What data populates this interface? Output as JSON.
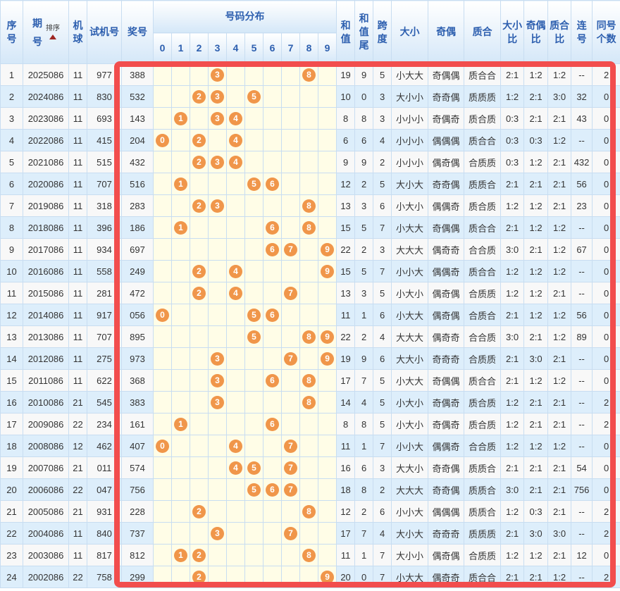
{
  "colors": {
    "highlight_red": "#f24d4d",
    "ball_orange": "#f0964a",
    "header_blue": "#2d5faf",
    "row_alt_blue": "#ddeefb",
    "ball_area_yellow": "#fffde7",
    "grid_line": "#c8ddf1",
    "sort_arrow_red": "#9e2723"
  },
  "table": {
    "headers": {
      "seq": "序号",
      "period": "期号",
      "sort_label": "排序",
      "machine": "机球",
      "test_number": "试机号",
      "win_number": "奖号",
      "distribution": "号码分布",
      "digits": [
        "0",
        "1",
        "2",
        "3",
        "4",
        "5",
        "6",
        "7",
        "8",
        "9"
      ],
      "sum": "和值",
      "sum_tail": "和值尾",
      "span": "跨度",
      "size": "大小",
      "parity": "奇偶",
      "prime": "质合",
      "size_ratio": "大小比",
      "parity_ratio": "奇偶比",
      "prime_ratio": "质合比",
      "consecutive": "连号",
      "same_count": "同号个数"
    },
    "rows": [
      {
        "seq": "1",
        "period": "2025086",
        "machine": "11",
        "test_number": "977",
        "win_number": "388",
        "distribution": [
          3,
          8
        ],
        "sum": "19",
        "sum_tail": "9",
        "span": "5",
        "size": "小大大",
        "parity": "奇偶偶",
        "prime": "质合合",
        "size_ratio": "2:1",
        "parity_ratio": "1:2",
        "prime_ratio": "1:2",
        "consecutive": "--",
        "same_count": "2"
      },
      {
        "seq": "2",
        "period": "2024086",
        "machine": "11",
        "test_number": "830",
        "win_number": "532",
        "distribution": [
          2,
          3,
          5
        ],
        "sum": "10",
        "sum_tail": "0",
        "span": "3",
        "size": "大小小",
        "parity": "奇奇偶",
        "prime": "质质质",
        "size_ratio": "1:2",
        "parity_ratio": "2:1",
        "prime_ratio": "3:0",
        "consecutive": "32",
        "same_count": "0"
      },
      {
        "seq": "3",
        "period": "2023086",
        "machine": "11",
        "test_number": "693",
        "win_number": "143",
        "distribution": [
          1,
          3,
          4
        ],
        "sum": "8",
        "sum_tail": "8",
        "span": "3",
        "size": "小小小",
        "parity": "奇偶奇",
        "prime": "质合质",
        "size_ratio": "0:3",
        "parity_ratio": "2:1",
        "prime_ratio": "2:1",
        "consecutive": "43",
        "same_count": "0"
      },
      {
        "seq": "4",
        "period": "2022086",
        "machine": "11",
        "test_number": "415",
        "win_number": "204",
        "distribution": [
          0,
          2,
          4
        ],
        "sum": "6",
        "sum_tail": "6",
        "span": "4",
        "size": "小小小",
        "parity": "偶偶偶",
        "prime": "质合合",
        "size_ratio": "0:3",
        "parity_ratio": "0:3",
        "prime_ratio": "1:2",
        "consecutive": "--",
        "same_count": "0"
      },
      {
        "seq": "5",
        "period": "2021086",
        "machine": "11",
        "test_number": "515",
        "win_number": "432",
        "distribution": [
          2,
          3,
          4
        ],
        "sum": "9",
        "sum_tail": "9",
        "span": "2",
        "size": "小小小",
        "parity": "偶奇偶",
        "prime": "合质质",
        "size_ratio": "0:3",
        "parity_ratio": "1:2",
        "prime_ratio": "2:1",
        "consecutive": "432",
        "same_count": "0"
      },
      {
        "seq": "6",
        "period": "2020086",
        "machine": "11",
        "test_number": "707",
        "win_number": "516",
        "distribution": [
          1,
          5,
          6
        ],
        "sum": "12",
        "sum_tail": "2",
        "span": "5",
        "size": "大小大",
        "parity": "奇奇偶",
        "prime": "质质合",
        "size_ratio": "2:1",
        "parity_ratio": "2:1",
        "prime_ratio": "2:1",
        "consecutive": "56",
        "same_count": "0"
      },
      {
        "seq": "7",
        "period": "2019086",
        "machine": "11",
        "test_number": "318",
        "win_number": "283",
        "distribution": [
          2,
          3,
          8
        ],
        "sum": "13",
        "sum_tail": "3",
        "span": "6",
        "size": "小大小",
        "parity": "偶偶奇",
        "prime": "质合质",
        "size_ratio": "1:2",
        "parity_ratio": "1:2",
        "prime_ratio": "2:1",
        "consecutive": "23",
        "same_count": "0"
      },
      {
        "seq": "8",
        "period": "2018086",
        "machine": "11",
        "test_number": "396",
        "win_number": "186",
        "distribution": [
          1,
          6,
          8
        ],
        "sum": "15",
        "sum_tail": "5",
        "span": "7",
        "size": "小大大",
        "parity": "奇偶偶",
        "prime": "质合合",
        "size_ratio": "2:1",
        "parity_ratio": "1:2",
        "prime_ratio": "1:2",
        "consecutive": "--",
        "same_count": "0"
      },
      {
        "seq": "9",
        "period": "2017086",
        "machine": "11",
        "test_number": "934",
        "win_number": "697",
        "distribution": [
          6,
          7,
          9
        ],
        "sum": "22",
        "sum_tail": "2",
        "span": "3",
        "size": "大大大",
        "parity": "偶奇奇",
        "prime": "合合质",
        "size_ratio": "3:0",
        "parity_ratio": "2:1",
        "prime_ratio": "1:2",
        "consecutive": "67",
        "same_count": "0"
      },
      {
        "seq": "10",
        "period": "2016086",
        "machine": "11",
        "test_number": "558",
        "win_number": "249",
        "distribution": [
          2,
          4,
          9
        ],
        "sum": "15",
        "sum_tail": "5",
        "span": "7",
        "size": "小小大",
        "parity": "偶偶奇",
        "prime": "质合合",
        "size_ratio": "1:2",
        "parity_ratio": "1:2",
        "prime_ratio": "1:2",
        "consecutive": "--",
        "same_count": "0"
      },
      {
        "seq": "11",
        "period": "2015086",
        "machine": "11",
        "test_number": "281",
        "win_number": "472",
        "distribution": [
          2,
          4,
          7
        ],
        "sum": "13",
        "sum_tail": "3",
        "span": "5",
        "size": "小大小",
        "parity": "偶奇偶",
        "prime": "合质质",
        "size_ratio": "1:2",
        "parity_ratio": "1:2",
        "prime_ratio": "2:1",
        "consecutive": "--",
        "same_count": "0"
      },
      {
        "seq": "12",
        "period": "2014086",
        "machine": "11",
        "test_number": "917",
        "win_number": "056",
        "distribution": [
          0,
          5,
          6
        ],
        "sum": "11",
        "sum_tail": "1",
        "span": "6",
        "size": "小大大",
        "parity": "偶奇偶",
        "prime": "合质合",
        "size_ratio": "2:1",
        "parity_ratio": "1:2",
        "prime_ratio": "1:2",
        "consecutive": "56",
        "same_count": "0"
      },
      {
        "seq": "13",
        "period": "2013086",
        "machine": "11",
        "test_number": "707",
        "win_number": "895",
        "distribution": [
          5,
          8,
          9
        ],
        "sum": "22",
        "sum_tail": "2",
        "span": "4",
        "size": "大大大",
        "parity": "偶奇奇",
        "prime": "合合质",
        "size_ratio": "3:0",
        "parity_ratio": "2:1",
        "prime_ratio": "1:2",
        "consecutive": "89",
        "same_count": "0"
      },
      {
        "seq": "14",
        "period": "2012086",
        "machine": "11",
        "test_number": "275",
        "win_number": "973",
        "distribution": [
          3,
          7,
          9
        ],
        "sum": "19",
        "sum_tail": "9",
        "span": "6",
        "size": "大大小",
        "parity": "奇奇奇",
        "prime": "合质质",
        "size_ratio": "2:1",
        "parity_ratio": "3:0",
        "prime_ratio": "2:1",
        "consecutive": "--",
        "same_count": "0"
      },
      {
        "seq": "15",
        "period": "2011086",
        "machine": "11",
        "test_number": "622",
        "win_number": "368",
        "distribution": [
          3,
          6,
          8
        ],
        "sum": "17",
        "sum_tail": "7",
        "span": "5",
        "size": "小大大",
        "parity": "奇偶偶",
        "prime": "质合合",
        "size_ratio": "2:1",
        "parity_ratio": "1:2",
        "prime_ratio": "1:2",
        "consecutive": "--",
        "same_count": "0"
      },
      {
        "seq": "16",
        "period": "2010086",
        "machine": "21",
        "test_number": "545",
        "win_number": "383",
        "distribution": [
          3,
          8
        ],
        "sum": "14",
        "sum_tail": "4",
        "span": "5",
        "size": "小大小",
        "parity": "奇偶奇",
        "prime": "质合质",
        "size_ratio": "1:2",
        "parity_ratio": "2:1",
        "prime_ratio": "2:1",
        "consecutive": "--",
        "same_count": "2"
      },
      {
        "seq": "17",
        "period": "2009086",
        "machine": "22",
        "test_number": "234",
        "win_number": "161",
        "distribution": [
          1,
          6
        ],
        "sum": "8",
        "sum_tail": "8",
        "span": "5",
        "size": "小大小",
        "parity": "奇偶奇",
        "prime": "质合质",
        "size_ratio": "1:2",
        "parity_ratio": "2:1",
        "prime_ratio": "2:1",
        "consecutive": "--",
        "same_count": "2"
      },
      {
        "seq": "18",
        "period": "2008086",
        "machine": "12",
        "test_number": "462",
        "win_number": "407",
        "distribution": [
          0,
          4,
          7
        ],
        "sum": "11",
        "sum_tail": "1",
        "span": "7",
        "size": "小小大",
        "parity": "偶偶奇",
        "prime": "合合质",
        "size_ratio": "1:2",
        "parity_ratio": "1:2",
        "prime_ratio": "1:2",
        "consecutive": "--",
        "same_count": "0"
      },
      {
        "seq": "19",
        "period": "2007086",
        "machine": "21",
        "test_number": "011",
        "win_number": "574",
        "distribution": [
          4,
          5,
          7
        ],
        "sum": "16",
        "sum_tail": "6",
        "span": "3",
        "size": "大大小",
        "parity": "奇奇偶",
        "prime": "质质合",
        "size_ratio": "2:1",
        "parity_ratio": "2:1",
        "prime_ratio": "2:1",
        "consecutive": "54",
        "same_count": "0"
      },
      {
        "seq": "20",
        "period": "2006086",
        "machine": "22",
        "test_number": "047",
        "win_number": "756",
        "distribution": [
          5,
          6,
          7
        ],
        "sum": "18",
        "sum_tail": "8",
        "span": "2",
        "size": "大大大",
        "parity": "奇奇偶",
        "prime": "质质合",
        "size_ratio": "3:0",
        "parity_ratio": "2:1",
        "prime_ratio": "2:1",
        "consecutive": "756",
        "same_count": "0"
      },
      {
        "seq": "21",
        "period": "2005086",
        "machine": "21",
        "test_number": "931",
        "win_number": "228",
        "distribution": [
          2,
          8
        ],
        "sum": "12",
        "sum_tail": "2",
        "span": "6",
        "size": "小小大",
        "parity": "偶偶偶",
        "prime": "质质合",
        "size_ratio": "1:2",
        "parity_ratio": "0:3",
        "prime_ratio": "2:1",
        "consecutive": "--",
        "same_count": "2"
      },
      {
        "seq": "22",
        "period": "2004086",
        "machine": "11",
        "test_number": "840",
        "win_number": "737",
        "distribution": [
          3,
          7
        ],
        "sum": "17",
        "sum_tail": "7",
        "span": "4",
        "size": "大小大",
        "parity": "奇奇奇",
        "prime": "质质质",
        "size_ratio": "2:1",
        "parity_ratio": "3:0",
        "prime_ratio": "3:0",
        "consecutive": "--",
        "same_count": "2"
      },
      {
        "seq": "23",
        "period": "2003086",
        "machine": "11",
        "test_number": "817",
        "win_number": "812",
        "distribution": [
          1,
          2,
          8
        ],
        "sum": "11",
        "sum_tail": "1",
        "span": "7",
        "size": "大小小",
        "parity": "偶奇偶",
        "prime": "合质质",
        "size_ratio": "1:2",
        "parity_ratio": "1:2",
        "prime_ratio": "2:1",
        "consecutive": "12",
        "same_count": "0"
      },
      {
        "seq": "24",
        "period": "2002086",
        "machine": "22",
        "test_number": "758",
        "win_number": "299",
        "distribution": [
          2,
          9
        ],
        "sum": "20",
        "sum_tail": "0",
        "span": "7",
        "size": "小大大",
        "parity": "偶奇奇",
        "prime": "质合合",
        "size_ratio": "2:1",
        "parity_ratio": "2:1",
        "prime_ratio": "1:2",
        "consecutive": "--",
        "same_count": "2"
      }
    ]
  }
}
